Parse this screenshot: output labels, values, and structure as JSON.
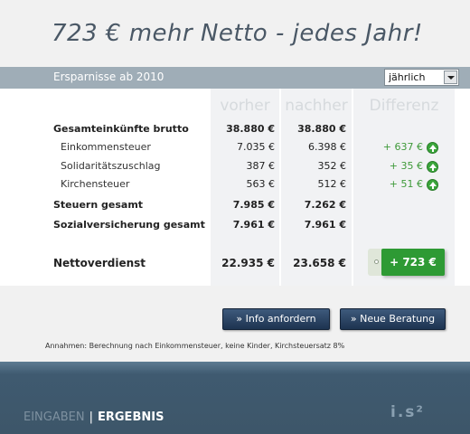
{
  "headline": "723 € mehr Netto - jedes Jahr!",
  "section": {
    "title": "Ersparnisse ab 2010",
    "period_select": {
      "value": "jährlich"
    }
  },
  "columns": {
    "before": "vorher",
    "after": "nachher",
    "difference": "Differenz"
  },
  "rows": [
    {
      "label": "Gesamteinkünfte brutto",
      "before": "38.880 €",
      "after": "38.880 €",
      "diff": ""
    },
    {
      "label": "Einkommensteuer",
      "before": "7.035 €",
      "after": "6.398 €",
      "diff": "+ 637 €"
    },
    {
      "label": "Solidaritätszuschlag",
      "before": "387 €",
      "after": "352 €",
      "diff": "+ 35 €"
    },
    {
      "label": "Kirchensteuer",
      "before": "563 €",
      "after": "512 €",
      "diff": "+ 51 €"
    },
    {
      "label": "Steuern gesamt",
      "before": "7.985 €",
      "after": "7.262 €",
      "diff": ""
    },
    {
      "label": "Sozialversicherung gesamt",
      "before": "7.961 €",
      "after": "7.961 €",
      "diff": ""
    },
    {
      "label": "Nettoverdienst",
      "before": "22.935 €",
      "after": "23.658 €",
      "diff": "+ 723 €"
    }
  ],
  "buttons": {
    "info": "» Info anfordern",
    "new_consultation": "» Neue Beratung"
  },
  "note": "Annahmen: Berechnung nach Einkommensteuer, keine Kinder, Kirchsteuersatz 8%",
  "footer": {
    "nav_inputs": "EINGABEN",
    "separator": "|",
    "nav_result": "ERGEBNIS",
    "logo_text": "i.s²"
  },
  "colors": {
    "accent_green": "#2e9a34",
    "header_bar": "#9fadb7",
    "button_navy": "#1d3350"
  }
}
